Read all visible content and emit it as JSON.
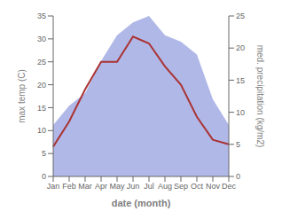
{
  "chart_data": {
    "type": "line",
    "categories": [
      "Jan",
      "Feb",
      "Mar",
      "Apr",
      "May",
      "Jun",
      "Jul",
      "Aug",
      "Sep",
      "Oct",
      "Nov",
      "Dec"
    ],
    "series": [
      {
        "type": "area",
        "axis": "y2",
        "color": "#b0b8e8",
        "values": [
          8.0,
          11.0,
          13.0,
          18.0,
          22.0,
          24.0,
          25.0,
          22.0,
          21.0,
          19.0,
          12.0,
          8.0
        ]
      },
      {
        "type": "line",
        "axis": "y",
        "color": "#aa3333",
        "values": [
          6.5,
          12.0,
          19.0,
          25.0,
          25.0,
          30.5,
          29.0,
          24.0,
          20.0,
          13.0,
          8.0,
          7.0
        ]
      }
    ],
    "x_label": "date (month)",
    "y_label": "max temp (C)",
    "y2_label": "med. precipitation (kg/m2)",
    "ylim": [
      0,
      35
    ],
    "yticks": [
      0,
      5,
      10,
      15,
      20,
      25,
      30,
      35
    ],
    "y2lim": [
      0,
      25
    ],
    "y2ticks": [
      0,
      5,
      10,
      15,
      20,
      25
    ],
    "grid": false
  }
}
